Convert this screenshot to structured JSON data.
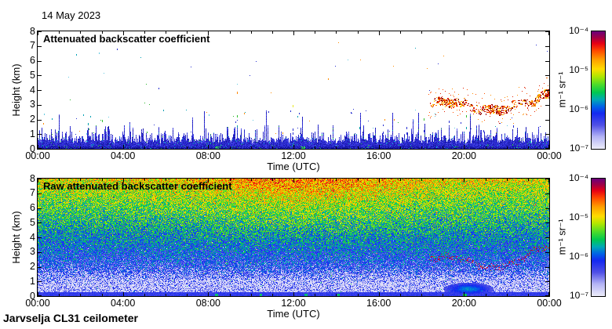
{
  "page": {
    "date_label": "14 May 2023",
    "footer_label": "Jarvselja CL31 ceilometer",
    "background_color": "#ffffff",
    "axis_color": "#000000"
  },
  "axis": {
    "x_label": "Time (UTC)",
    "x_tick_labels": [
      "00:00",
      "04:00",
      "08:00",
      "12:00",
      "16:00",
      "20:00",
      "00:00"
    ],
    "y_label": "Height (km)",
    "y_tick_labels": [
      "0",
      "1",
      "2",
      "3",
      "4",
      "5",
      "6",
      "7",
      "8"
    ]
  },
  "colorbar": {
    "unit_label": "m⁻¹ sr⁻¹",
    "tick_labels": [
      "10⁻⁴",
      "10⁻⁵",
      "10⁻⁶",
      "10⁻⁷"
    ],
    "scale": "log10",
    "min": 1e-07,
    "max": 0.0001,
    "gradient_stops": [
      [
        0.0,
        "#ebebfa"
      ],
      [
        0.1,
        "#b4b4f5"
      ],
      [
        0.2,
        "#5050e6"
      ],
      [
        0.3,
        "#1428f0"
      ],
      [
        0.36,
        "#0064e6"
      ],
      [
        0.42,
        "#00aab4"
      ],
      [
        0.48,
        "#00c850"
      ],
      [
        0.55,
        "#50dc28"
      ],
      [
        0.62,
        "#b4e600"
      ],
      [
        0.68,
        "#ffdc00"
      ],
      [
        0.76,
        "#ffa000"
      ],
      [
        0.84,
        "#ff4600"
      ],
      [
        0.9,
        "#e60014"
      ],
      [
        0.95,
        "#a00046"
      ],
      [
        1.0,
        "#6e0078"
      ]
    ]
  },
  "panels": [
    {
      "title": "Attenuated backscatter coefficient"
    },
    {
      "title": "Raw attenuated backscatter coefficient"
    }
  ],
  "chart_data": [
    {
      "type": "heatmap",
      "title": "Attenuated backscatter coefficient",
      "x_axis": {
        "label": "Time (UTC)",
        "range_hours": [
          0,
          24
        ],
        "tick_labels": [
          "00:00",
          "04:00",
          "08:00",
          "12:00",
          "16:00",
          "20:00",
          "00:00"
        ],
        "major_tick_h": 4,
        "minor_tick_h": 1
      },
      "y_axis": {
        "label": "Height (km)",
        "range_km": [
          0,
          8
        ],
        "tick_step_km": 1
      },
      "z_axis": {
        "unit": "m⁻¹ sr⁻¹",
        "scale": "log10",
        "range": [
          1e-07,
          0.0001
        ]
      },
      "background": "white (values below 1e-7)",
      "features": {
        "boundary_layer": {
          "time_h": [
            0,
            24
          ],
          "height_km": [
            0,
            0.5
          ],
          "spike_top_km": [
            0.5,
            0.9
          ],
          "typical_value": 3e-06,
          "description": "continuous dark-blue surface aerosol band with spiky top, occasional green/cyan flecks",
          "palette": [
            "#1a1aa8",
            "#2424c4",
            "#3030d8",
            "#2a2ace",
            "#3e3ee4"
          ],
          "green_patches_time_h": [
            [
              8.25,
              8.55
            ],
            [
              12.3,
              12.55
            ]
          ]
        },
        "elevated_layer": {
          "time_h": [
            18.3,
            24
          ],
          "center_km_range": [
            2.4,
            3.9
          ],
          "thickness_km": 0.6,
          "typical_value": 3e-05,
          "description": "wavy orange/red speckled aerosol-cloud layer appearing ~18:30, rising to ~4 km near 00:00",
          "palette": [
            "#ff8c00",
            "#ff5000",
            "#e02000",
            "#a00000",
            "#ffc800",
            "#8b0000"
          ]
        },
        "spikes": [
          {
            "t": 2.35,
            "dots": [
              [
                1.3,
                "blue"
              ],
              [
                1.75,
                "teal"
              ]
            ]
          },
          {
            "t": 3.0,
            "dots": [
              [
                2.0,
                "green"
              ]
            ]
          },
          {
            "t": 9.35,
            "dots": [
              [
                0.9,
                "blue"
              ],
              [
                1.3,
                "blue"
              ],
              [
                1.6,
                "teal"
              ],
              [
                2.3,
                "green"
              ],
              [
                3.9,
                "orange"
              ]
            ]
          },
          {
            "t": 11.95,
            "dots": [
              [
                0.8,
                "blue"
              ],
              [
                1.1,
                "blue"
              ],
              [
                1.4,
                "blue"
              ],
              [
                3.0,
                "yellow"
              ]
            ]
          },
          {
            "t": 13.0,
            "dots": [
              [
                1.2,
                "blue"
              ]
            ]
          },
          {
            "t": 15.1,
            "dots": [
              [
                1.5,
                "teal"
              ]
            ]
          },
          {
            "t": 16.2,
            "dots": [
              [
                1.2,
                "blue"
              ]
            ]
          },
          {
            "t": 17.3,
            "dots": [
              [
                1.1,
                "blue"
              ],
              [
                1.5,
                "blue"
              ]
            ]
          },
          {
            "t": 18.1,
            "dots": [
              [
                1.3,
                "blue"
              ],
              [
                2.1,
                "green"
              ]
            ]
          },
          {
            "t": 19.3,
            "dots": [
              [
                1.2,
                "blue"
              ],
              [
                1.9,
                "blue"
              ]
            ]
          },
          {
            "t": 20.1,
            "dots": [
              [
                1.5,
                "teal"
              ],
              [
                2.3,
                "green"
              ]
            ]
          },
          {
            "t": 20.9,
            "dots": [
              [
                1.3,
                "blue"
              ]
            ]
          },
          {
            "t": 22.3,
            "dots": [
              [
                1.6,
                "blue"
              ]
            ]
          }
        ],
        "spike_colors": {
          "blue": "#2830d0",
          "teal": "#00a0a8",
          "green": "#30c030",
          "yellow": "#e8e820",
          "orange": "#ff8800",
          "cyan": "#50c8dc"
        },
        "scatter_palette": [
          "#2830d0",
          "#2830d0",
          "#2830d0",
          "#00a0b4",
          "#28b428",
          "#60c8e0",
          "#ff8c00"
        ],
        "scattered_speck_value": 1e-06
      }
    },
    {
      "type": "heatmap",
      "title": "Raw attenuated backscatter coefficient",
      "x_axis": {
        "label": "Time (UTC)",
        "range_hours": [
          0,
          24
        ],
        "tick_labels": [
          "00:00",
          "04:00",
          "08:00",
          "12:00",
          "16:00",
          "20:00",
          "00:00"
        ]
      },
      "y_axis": {
        "label": "Height (km)",
        "range_km": [
          0,
          8
        ],
        "tick_step_km": 1
      },
      "z_axis": {
        "unit": "m⁻¹ sr⁻¹",
        "scale": "log10",
        "range": [
          1e-07,
          0.0001
        ]
      },
      "background": "full-panel range-corrected noise speckle",
      "features": {
        "noise_profile": {
          "description": "noise magnitude grows with height (range² correction): blue near surface through green mid-levels to yellow/orange/red near 8 km",
          "log10_value_by_height_km": {
            "0.2": -6.3,
            "1": -6.8,
            "2": -6.2,
            "4": -5.8,
            "6": -5.4,
            "8": -5.0
          },
          "jitter_decades": 0.5
        },
        "daytime_boost": {
          "time_h": [
            6,
            18
          ],
          "peak_time_h": 12.3,
          "extra_decades_at_top": 0.38,
          "description": "solar background raises upper-level noise to orange/red between ~06:00 and ~18:00"
        },
        "white_speckle_band": {
          "height_km": [
            0.25,
            2.2
          ],
          "value": "< 1e-7",
          "description": "white sub-threshold speckle mixed with blue"
        },
        "surface_band": {
          "height_km": [
            0,
            0.3
          ],
          "value": 5e-07,
          "description": "smooth solid blue strip along the bottom"
        },
        "elevated_layer": {
          "time_h": [
            18.3,
            24
          ],
          "center_km_range": [
            2.1,
            3.2
          ],
          "typical_value": 5e-05,
          "description": "thin wavy red/dark-red speckled layer embedded in noise",
          "palette": [
            "#e60014",
            "#a00046",
            "#ff4600"
          ]
        },
        "cyan_patch": {
          "time_h": [
            18.8,
            21.5
          ],
          "height_km": [
            0.2,
            1.0
          ],
          "value": 8e-07,
          "description": "smooth teal haze bulge near surface"
        },
        "bottom_green_streaks_time_h": [
          [
            8.3,
            8.45
          ],
          [
            10.4,
            10.5
          ],
          [
            12.5,
            12.65
          ],
          [
            14.05,
            14.15
          ],
          [
            19.95,
            20.1
          ]
        ]
      }
    }
  ]
}
